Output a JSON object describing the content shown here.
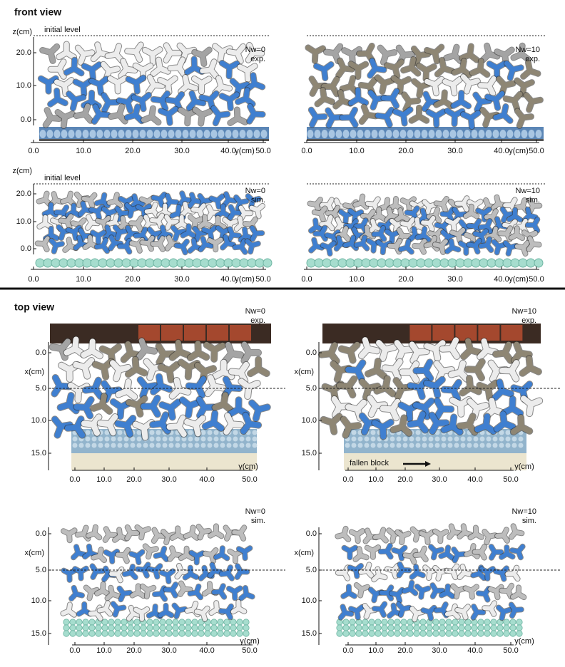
{
  "sections": [
    {
      "title": "front view",
      "panels": [
        {
          "case": "Nw=0",
          "source": "exp.",
          "vertical_axis": {
            "label": "z(cm)",
            "ticks": [
              "0.0",
              "10.0",
              "20.0"
            ]
          },
          "horizontal_axis": {
            "label": "y(cm)",
            "ticks": [
              "0.0",
              "10.0",
              "20.0",
              "30.0",
              "40.0",
              "50.0"
            ]
          },
          "reference_label": "initial level"
        },
        {
          "case": "Nw=10",
          "source": "exp.",
          "horizontal_axis": {
            "label": "y(cm)",
            "ticks": [
              "0.0",
              "10.0",
              "20.0",
              "30.0",
              "40.0",
              "50.0"
            ]
          }
        },
        {
          "case": "Nw=0",
          "source": "sim.",
          "vertical_axis": {
            "label": "z(cm)",
            "ticks": [
              "0.0",
              "10.0",
              "20.0"
            ]
          },
          "horizontal_axis": {
            "label": "y(cm)",
            "ticks": [
              "0.0",
              "10.0",
              "20.0",
              "30.0",
              "40.0",
              "50.0"
            ]
          },
          "reference_label": "initial level"
        },
        {
          "case": "Nw=10",
          "source": "sim.",
          "horizontal_axis": {
            "label": "y(cm)",
            "ticks": [
              "0.0",
              "10.0",
              "20.0",
              "30.0",
              "40.0",
              "50.0"
            ]
          }
        }
      ]
    },
    {
      "title": "top view",
      "panels": [
        {
          "case": "Nw=0",
          "source": "exp.",
          "vertical_axis": {
            "label": "x(cm)",
            "ticks": [
              "0.0",
              "5.0",
              "10.0",
              "15.0"
            ]
          },
          "horizontal_axis": {
            "label": "y(cm)",
            "ticks": [
              "0.0",
              "10.0",
              "20.0",
              "30.0",
              "40.0",
              "50.0"
            ]
          }
        },
        {
          "case": "Nw=10",
          "source": "exp.",
          "vertical_axis": {
            "label": "x(cm)",
            "ticks": [
              "0.0",
              "5.0",
              "10.0",
              "15.0"
            ]
          },
          "horizontal_axis": {
            "label": "y(cm)",
            "ticks": [
              "0.0",
              "10.0",
              "20.0",
              "30.0",
              "40.0",
              "50.0"
            ]
          },
          "annotation": "fallen block"
        },
        {
          "case": "Nw=0",
          "source": "sim.",
          "vertical_axis": {
            "label": "x(cm)",
            "ticks": [
              "0.0",
              "5.0",
              "10.0",
              "15.0"
            ]
          },
          "horizontal_axis": {
            "label": "y(cm)",
            "ticks": [
              "0.0",
              "10.0",
              "20.0",
              "30.0",
              "40.0",
              "50.0"
            ]
          }
        },
        {
          "case": "Nw=10",
          "source": "sim.",
          "vertical_axis": {
            "label": "x(cm)",
            "ticks": [
              "0.0",
              "5.0",
              "10.0",
              "15.0"
            ]
          },
          "horizontal_axis": {
            "label": "y(cm)",
            "ticks": [
              "0.0",
              "10.0",
              "20.0",
              "30.0",
              "40.0",
              "50.0"
            ]
          }
        }
      ]
    }
  ]
}
